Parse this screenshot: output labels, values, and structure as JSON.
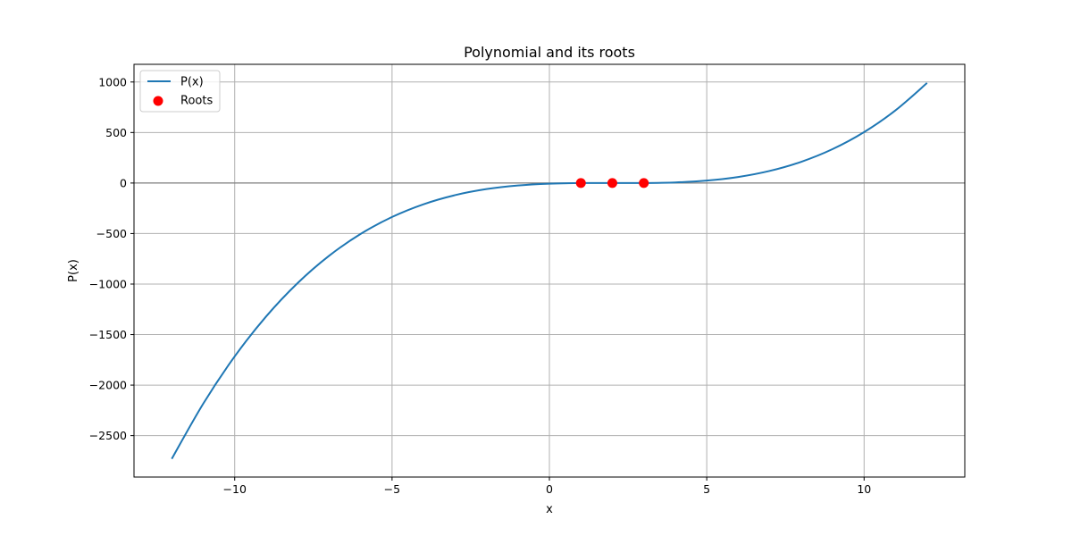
{
  "chart_data": {
    "type": "line",
    "title": "Polynomial and its roots",
    "xlabel": "x",
    "ylabel": "P(x)",
    "xlim": [
      -13.2,
      13.2
    ],
    "ylim": [
      -2910,
      1175
    ],
    "grid": true,
    "legend_position": "upper-left",
    "x_ticks": [
      {
        "value": -10,
        "label": "−10"
      },
      {
        "value": -5,
        "label": "−5"
      },
      {
        "value": 0,
        "label": "0"
      },
      {
        "value": 5,
        "label": "5"
      },
      {
        "value": 10,
        "label": "10"
      }
    ],
    "y_ticks": [
      {
        "value": 1000,
        "label": "1000"
      },
      {
        "value": 500,
        "label": "500"
      },
      {
        "value": 0,
        "label": "0"
      },
      {
        "value": -500,
        "label": "−500"
      },
      {
        "value": -1000,
        "label": "−1000"
      },
      {
        "value": -1500,
        "label": "−1500"
      },
      {
        "value": -2000,
        "label": "−2000"
      },
      {
        "value": -2500,
        "label": "−2500"
      }
    ],
    "reference_line": {
      "y": 0,
      "color": "#808080"
    },
    "series": [
      {
        "name": "P(x)",
        "kind": "line",
        "color": "#1f77b4",
        "x": [
          -12,
          -11,
          -10,
          -9,
          -8,
          -7,
          -6,
          -5,
          -4,
          -3,
          -2,
          -1,
          0,
          1,
          2,
          3,
          4,
          5,
          6,
          7,
          8,
          9,
          10,
          11,
          12
        ],
        "y": [
          -2730,
          -2184,
          -1716,
          -1320,
          -990,
          -720,
          -504,
          -336,
          -210,
          -120,
          -60,
          -24,
          -6,
          0,
          0,
          0,
          6,
          24,
          60,
          120,
          210,
          336,
          504,
          720,
          990
        ]
      },
      {
        "name": "Roots",
        "kind": "scatter",
        "color": "#ff0000",
        "x": [
          1,
          2,
          3
        ],
        "y": [
          0,
          0,
          0
        ]
      }
    ]
  }
}
